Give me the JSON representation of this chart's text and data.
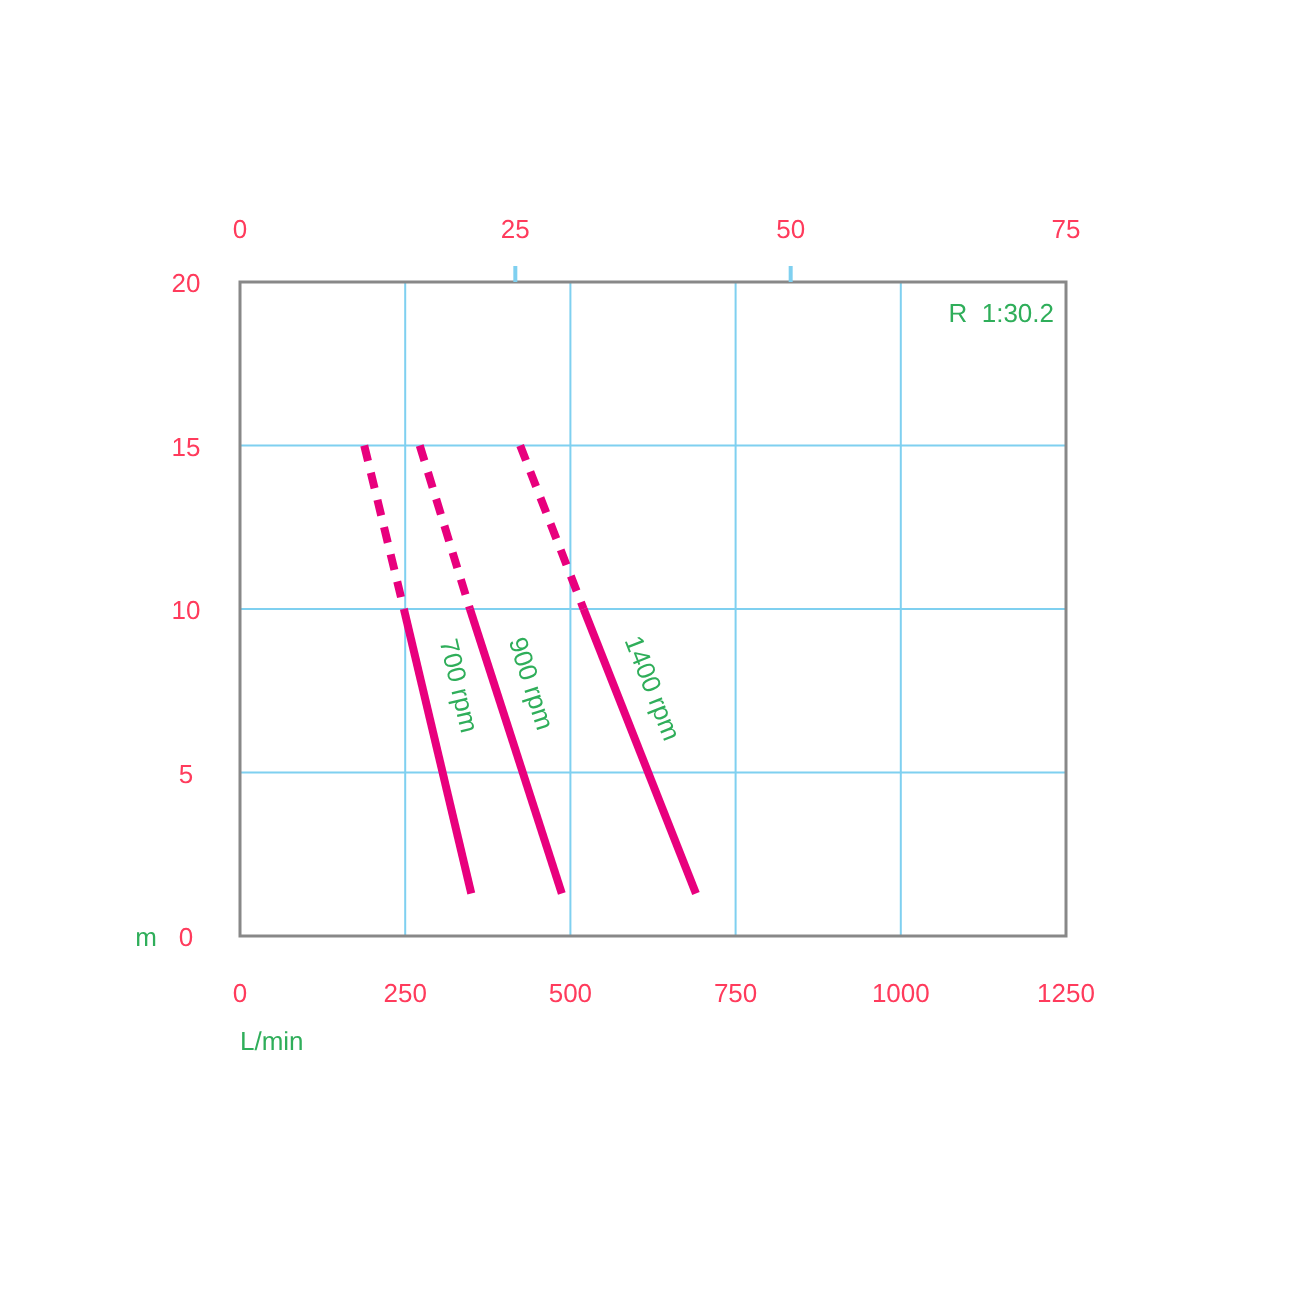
{
  "chart_data": {
    "type": "line",
    "xlabel": "L/min",
    "ylabel": "m",
    "xlim": [
      0,
      1250
    ],
    "xticks": [
      0,
      250,
      500,
      750,
      1000,
      1250
    ],
    "x2lim": [
      0,
      75
    ],
    "x2ticks": [
      0,
      25,
      50,
      75
    ],
    "ylim": [
      0,
      20
    ],
    "yticks": [
      0,
      5,
      10,
      15,
      20
    ],
    "grid": true,
    "annotations": [
      "R  1:30.2"
    ],
    "series": [
      {
        "color": "#e8007d",
        "line_style": "dashed",
        "x": [
          188,
          248
        ],
        "values": [
          15,
          10
        ]
      },
      {
        "name": "700 rpm",
        "color": "#e8007d",
        "line_style": "solid",
        "x": [
          248,
          350
        ],
        "values": [
          10,
          1.3
        ]
      },
      {
        "color": "#e8007d",
        "line_style": "dashed",
        "x": [
          272,
          348
        ],
        "values": [
          15,
          10
        ]
      },
      {
        "name": "900 rpm",
        "color": "#e8007d",
        "line_style": "solid",
        "x": [
          348,
          487
        ],
        "values": [
          10,
          1.3
        ]
      },
      {
        "color": "#e8007d",
        "line_style": "dashed",
        "x": [
          424,
          520
        ],
        "values": [
          15,
          10
        ]
      },
      {
        "name": "1400 rpm",
        "color": "#e8007d",
        "line_style": "solid",
        "x": [
          520,
          690
        ],
        "values": [
          10,
          1.3
        ]
      }
    ]
  }
}
